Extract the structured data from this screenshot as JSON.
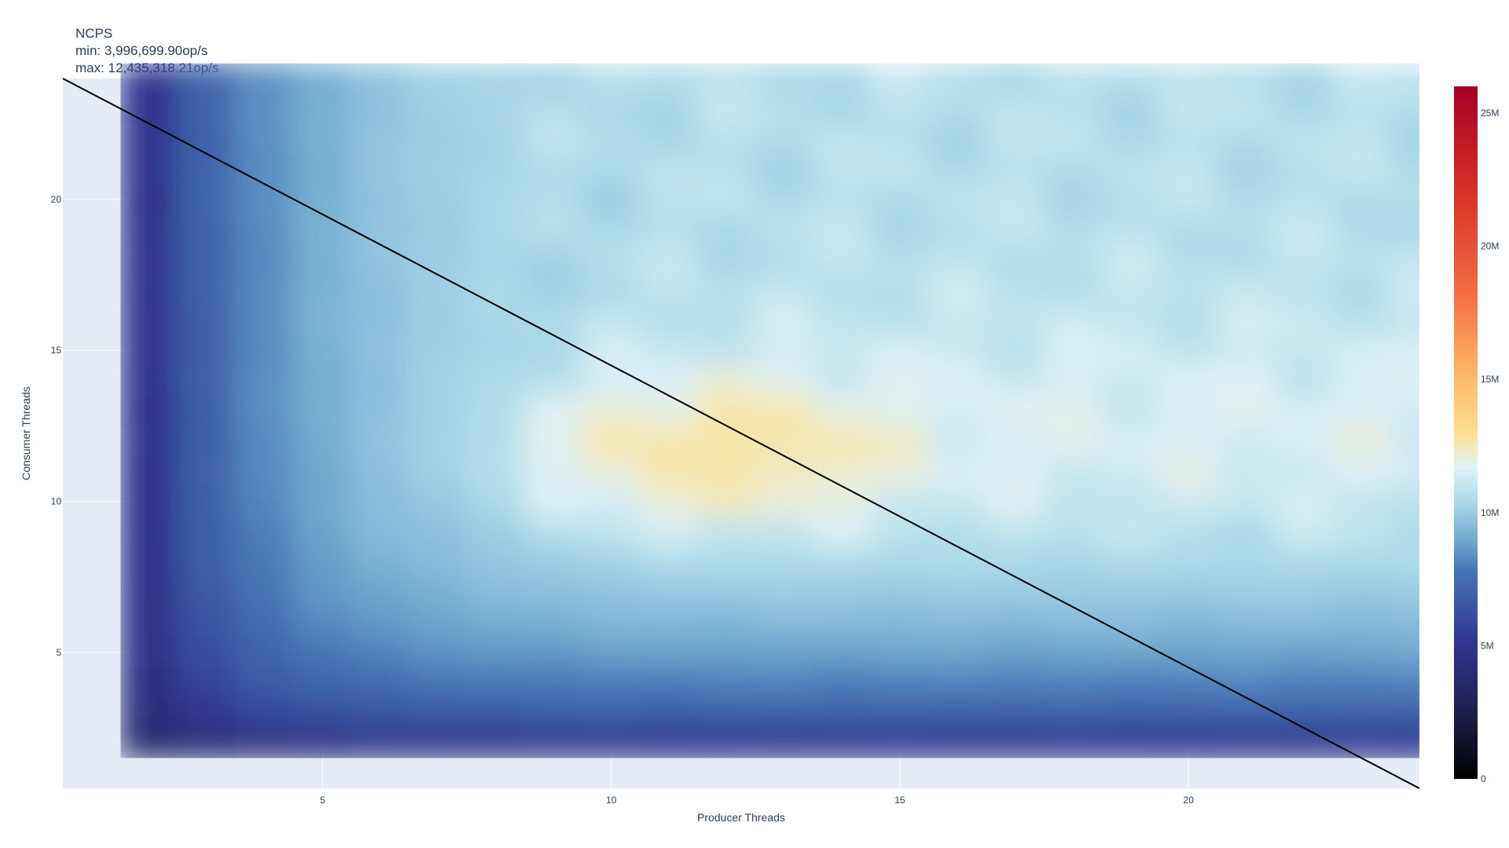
{
  "chart_data": {
    "type": "heatmap",
    "title": "NCPS",
    "subtitle_lines": [
      "min: 3,996,699.90op/s",
      "max: 12,435,318.21op/s"
    ],
    "xlabel": "Producer Threads",
    "ylabel": "Consumer Threads",
    "x": [
      2,
      3,
      4,
      5,
      6,
      7,
      8,
      9,
      10,
      11,
      12,
      13,
      14,
      15,
      16,
      17,
      18,
      19,
      20,
      21,
      22,
      23,
      24
    ],
    "y": [
      2,
      3,
      4,
      5,
      6,
      7,
      8,
      9,
      10,
      11,
      12,
      13,
      14,
      15,
      16,
      17,
      18,
      19,
      20,
      21,
      22,
      23,
      24
    ],
    "xlim": [
      0.5,
      24
    ],
    "ylim": [
      0.5,
      24
    ],
    "x_ticks": [
      5,
      10,
      15,
      20
    ],
    "y_ticks": [
      5,
      10,
      15,
      20
    ],
    "x_tick_labels": [
      "5",
      "10",
      "15",
      "20"
    ],
    "y_tick_labels": [
      "5",
      "10",
      "15",
      "20"
    ],
    "colorscale": "RdYlBu (reversed)",
    "zlim": [
      0,
      26000000
    ],
    "colorbar_ticks": [
      0,
      5000000,
      10000000,
      15000000,
      20000000,
      25000000
    ],
    "colorbar_tick_labels": [
      "0",
      "5M",
      "10M",
      "15M",
      "20M",
      "25M"
    ],
    "z_min": 3996699.9,
    "z_max": 12435318.21,
    "reference_line": {
      "from": [
        0.5,
        24
      ],
      "to": [
        24,
        0.5
      ],
      "color": "#000000"
    },
    "grid": true
  },
  "colors": {
    "plot_bg": "#e5ecf6",
    "grid": "#ffffff",
    "text": "#2a3f5f"
  }
}
